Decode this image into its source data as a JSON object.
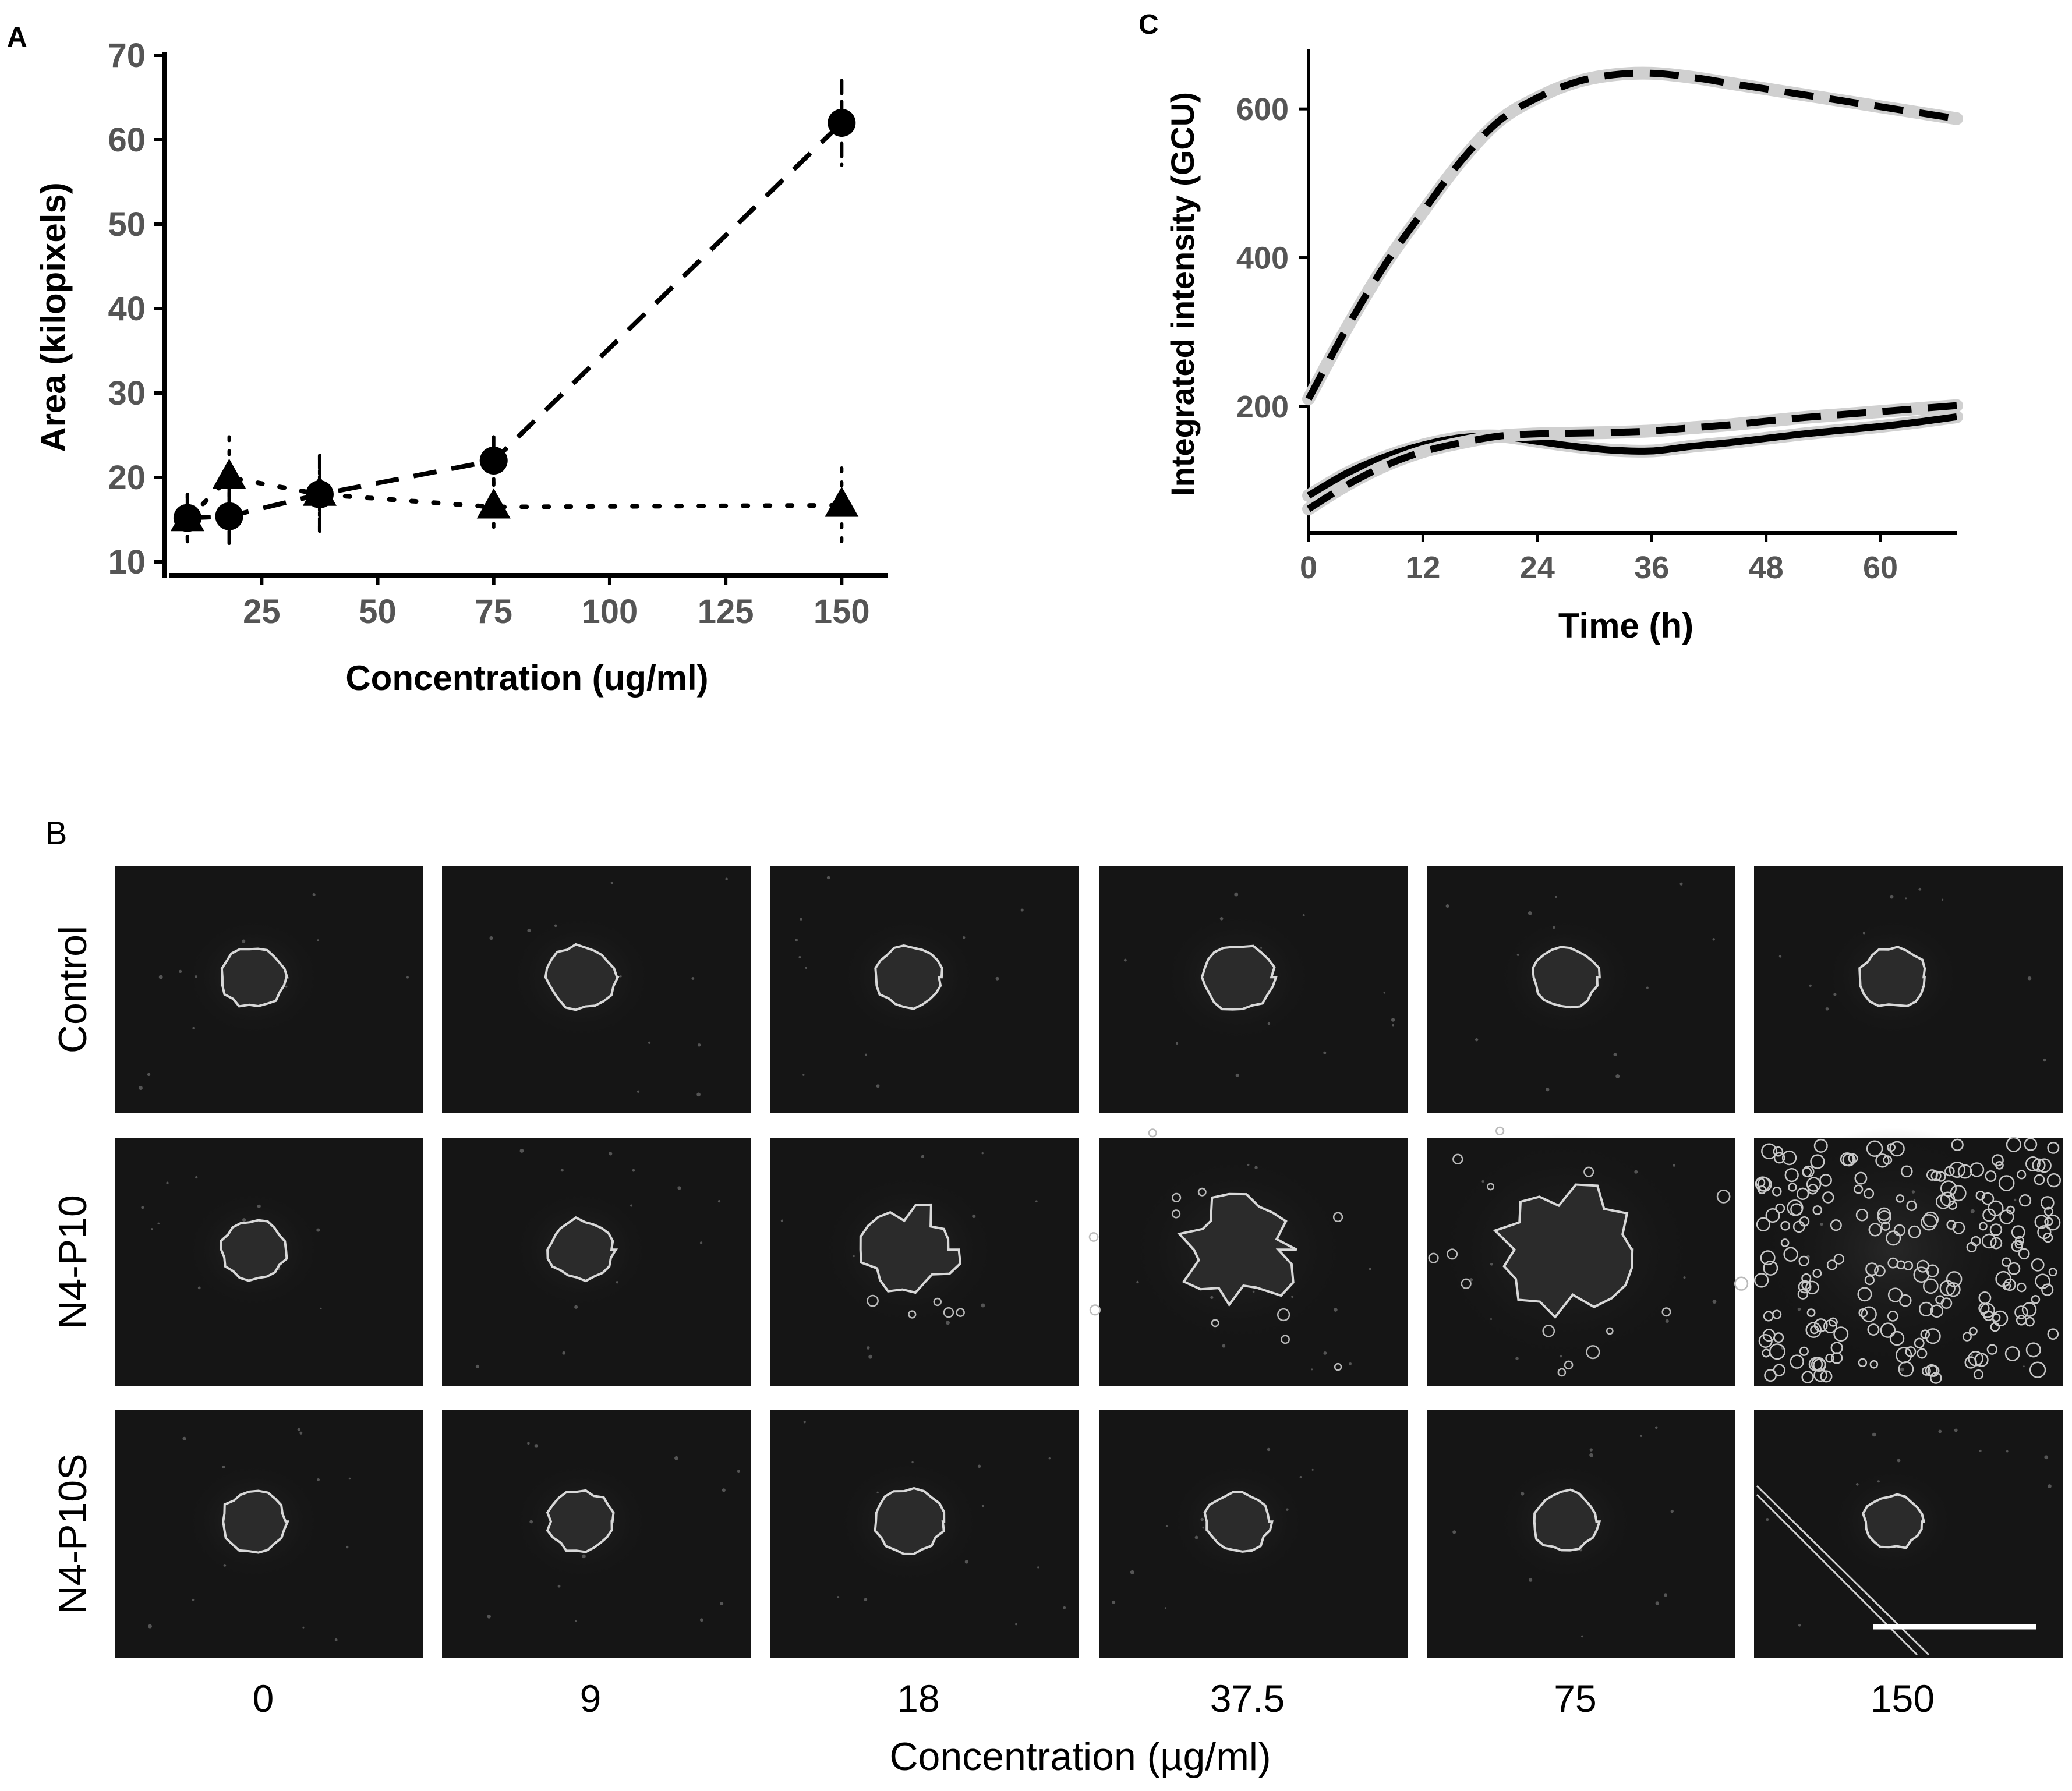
{
  "figure": {
    "panel_a_letter": "A",
    "panel_b_letter": "B",
    "panel_c_letter": "C"
  },
  "chart_data": [
    {
      "panel": "A",
      "type": "scatter",
      "xlabel": "Concentration (ug/ml)",
      "ylabel": "Area (kilopixels)",
      "xlim": [
        5,
        160
      ],
      "ylim": [
        10,
        70
      ],
      "xticks": [
        25,
        50,
        75,
        100,
        125,
        150
      ],
      "yticks": [
        10,
        20,
        30,
        40,
        50,
        60,
        70
      ],
      "grid": false,
      "series": [
        {
          "marker": "circle",
          "line": "dashed",
          "x": [
            9,
            18,
            37.5,
            75,
            150
          ],
          "y": [
            15.2,
            15.4,
            18.0,
            22.0,
            62.0
          ],
          "err": [
            2.8,
            3.2,
            4.6,
            2.8,
            5.0
          ]
        },
        {
          "marker": "triangle",
          "line": "dotted",
          "x": [
            9,
            18,
            37.5,
            75,
            150
          ],
          "y": [
            15.0,
            20.0,
            18.0,
            16.5,
            16.7
          ],
          "err": [
            3.0,
            4.8,
            4.5,
            3.0,
            4.4
          ]
        }
      ]
    },
    {
      "panel": "C",
      "type": "line",
      "xlabel": "Time (h)",
      "ylabel": "Integrated intensity (GCU)",
      "xlim": [
        0,
        68
      ],
      "ylim": [
        30,
        680
      ],
      "xticks": [
        0,
        12,
        24,
        36,
        48,
        60
      ],
      "yticks": [
        200,
        400,
        600
      ],
      "grid": false,
      "series": [
        {
          "line": "dashed",
          "x": [
            0,
            4,
            8,
            12,
            16,
            20,
            24,
            28,
            32,
            36,
            40,
            44,
            48,
            52,
            56,
            60,
            64,
            68
          ],
          "y": [
            210,
            305,
            390,
            462,
            530,
            584,
            615,
            636,
            646,
            648,
            643,
            635,
            627,
            619,
            611,
            603,
            595,
            587
          ]
        },
        {
          "line": "solid",
          "x": [
            0,
            4,
            8,
            12,
            16,
            20,
            24,
            28,
            32,
            36,
            40,
            44,
            48,
            52,
            56,
            60,
            64,
            68
          ],
          "y": [
            80,
            110,
            132,
            148,
            158,
            160,
            153,
            146,
            141,
            140,
            146,
            151,
            157,
            163,
            168,
            173,
            179,
            186
          ]
        },
        {
          "line": "dashed",
          "x": [
            0,
            4,
            8,
            12,
            16,
            20,
            24,
            28,
            32,
            36,
            40,
            44,
            48,
            52,
            56,
            60,
            64,
            68
          ],
          "y": [
            62,
            94,
            120,
            139,
            151,
            160,
            163,
            164,
            165,
            167,
            171,
            175,
            180,
            185,
            189,
            193,
            197,
            201
          ]
        }
      ]
    }
  ],
  "panel_b": {
    "row_labels": [
      "Control",
      "N4-P10",
      "N4-P10S"
    ],
    "column_labels": [
      "0",
      "9",
      "18",
      "37.5",
      "75",
      "150"
    ],
    "xlabel": "Concentration (µg/ml)",
    "colors": {
      "tile_bg": "#151515",
      "cell_edge": "#d8d8d8",
      "scale_bar": "#ffffff"
    },
    "relative_spread": [
      [
        1.0,
        1.05,
        1.0,
        1.1,
        1.0,
        1.0
      ],
      [
        1.0,
        1.0,
        1.3,
        1.6,
        1.9,
        4.2
      ],
      [
        1.0,
        1.0,
        1.05,
        1.0,
        1.0,
        0.9
      ]
    ]
  }
}
